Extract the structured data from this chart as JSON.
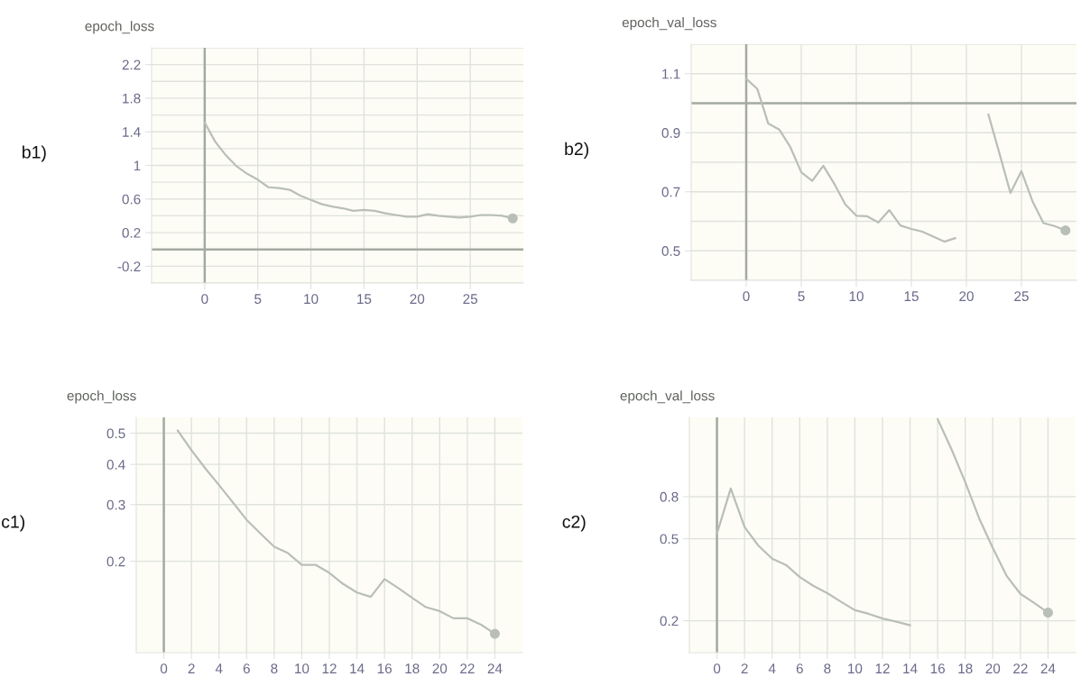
{
  "chart_data": [
    {
      "type": "line",
      "title": "epoch_loss",
      "annotations": [
        "b1)"
      ],
      "x": [
        0,
        1,
        2,
        3,
        4,
        5,
        6,
        7,
        8,
        9,
        10,
        11,
        12,
        13,
        14,
        15,
        16,
        17,
        18,
        19,
        20,
        21,
        22,
        23,
        24,
        25,
        26,
        27,
        28,
        29
      ],
      "series": [
        {
          "color": "#b9bfb7",
          "values": [
            1.51,
            1.28,
            1.12,
            0.99,
            0.9,
            0.83,
            0.74,
            0.73,
            0.71,
            0.64,
            0.59,
            0.54,
            0.51,
            0.49,
            0.46,
            0.47,
            0.46,
            0.43,
            0.41,
            0.39,
            0.39,
            0.42,
            0.4,
            0.39,
            0.38,
            0.39,
            0.41,
            0.41,
            0.4,
            0.37
          ]
        }
      ],
      "xlim": [
        -5,
        30
      ],
      "xticks": [
        0,
        5,
        10,
        15,
        20,
        25
      ],
      "ylim": [
        -0.4,
        2.4
      ],
      "yticks": [
        -0.2,
        0.2,
        0.6,
        1,
        1.4,
        1.8,
        2.2
      ],
      "grid": true,
      "ref_lines": [
        {
          "axis": "x",
          "value": 0,
          "color": "#a3aaa2"
        },
        {
          "axis": "y",
          "value": 0,
          "color": "#a3aaa2"
        }
      ]
    },
    {
      "type": "line",
      "title": "epoch_val_loss",
      "annotations": [
        "b2)"
      ],
      "x": [
        0,
        1,
        2,
        3,
        4,
        5,
        6,
        7,
        8,
        9,
        10,
        11,
        12,
        13,
        14,
        15,
        16,
        17,
        18,
        19,
        20,
        21,
        22,
        23,
        24,
        25,
        26,
        27,
        28,
        29
      ],
      "series": [
        {
          "color": "#b9bfb7",
          "values": [
            1.083,
            1.049,
            0.931,
            0.911,
            0.852,
            0.766,
            0.737,
            0.788,
            0.727,
            0.657,
            0.619,
            0.617,
            0.596,
            0.638,
            0.586,
            0.574,
            0.565,
            0.548,
            0.531,
            0.543,
            null,
            null,
            0.962,
            0.83,
            0.696,
            0.77,
            0.668,
            0.594,
            0.584,
            0.569
          ]
        }
      ],
      "xlim": [
        -5,
        30
      ],
      "xticks": [
        0,
        5,
        10,
        15,
        20,
        25
      ],
      "ylim": [
        0.4,
        1.2
      ],
      "yticks": [
        0.5,
        0.7,
        0.9,
        1.1
      ],
      "grid": true,
      "ref_lines": [
        {
          "axis": "x",
          "value": 0,
          "color": "#a3aaa2"
        },
        {
          "axis": "y",
          "value": 1.0,
          "color": "#a3aaa2"
        }
      ]
    },
    {
      "type": "line",
      "title": "epoch_loss",
      "annotations": [
        "c1)"
      ],
      "x": [
        1,
        2,
        3,
        4,
        5,
        6,
        7,
        8,
        9,
        10,
        11,
        12,
        13,
        14,
        15,
        16,
        17,
        18,
        19,
        20,
        21,
        22,
        23,
        24
      ],
      "series": [
        {
          "color": "#b9bfb7",
          "values": [
            0.51,
            0.443,
            0.389,
            0.345,
            0.305,
            0.269,
            0.244,
            0.222,
            0.212,
            0.195,
            0.195,
            0.184,
            0.17,
            0.16,
            0.155,
            0.176,
            0.165,
            0.154,
            0.144,
            0.14,
            0.133,
            0.133,
            0.127,
            0.119
          ]
        }
      ],
      "xlim": [
        -2,
        26
      ],
      "xticks": [
        0,
        2,
        4,
        6,
        8,
        10,
        12,
        14,
        16,
        18,
        20,
        22,
        24
      ],
      "log": "y",
      "ylim": [
        0.104,
        0.56
      ],
      "yticks": [
        0.2,
        0.3,
        0.4,
        0.5
      ],
      "grid": true,
      "ref_lines": [
        {
          "axis": "x",
          "value": 0,
          "color": "#a3aaa2"
        }
      ]
    },
    {
      "type": "line",
      "title": "epoch_val_loss",
      "annotations": [
        "c2)"
      ],
      "x": [
        0,
        1,
        2,
        3,
        4,
        5,
        6,
        7,
        8,
        9,
        10,
        11,
        12,
        13,
        14,
        15,
        16,
        17,
        18,
        19,
        20,
        21,
        22,
        23,
        24
      ],
      "series": [
        {
          "color": "#b9bfb7",
          "values": [
            0.53,
            0.876,
            0.57,
            0.463,
            0.4,
            0.373,
            0.326,
            0.295,
            0.272,
            0.247,
            0.225,
            0.216,
            0.205,
            0.198,
            0.19,
            null,
            1.9,
            1.36,
            0.94,
            0.63,
            0.45,
            0.33,
            0.27,
            0.244,
            0.219
          ]
        }
      ],
      "xlim": [
        -2,
        26
      ],
      "xticks": [
        0,
        2,
        4,
        6,
        8,
        10,
        12,
        14,
        16,
        18,
        20,
        22,
        24
      ],
      "log": "y",
      "ylim": [
        0.14,
        1.94
      ],
      "yticks": [
        0.2,
        0.5,
        0.8
      ],
      "grid": true,
      "ref_lines": [
        {
          "axis": "x",
          "value": 0,
          "color": "#a3aaa2"
        }
      ]
    }
  ]
}
